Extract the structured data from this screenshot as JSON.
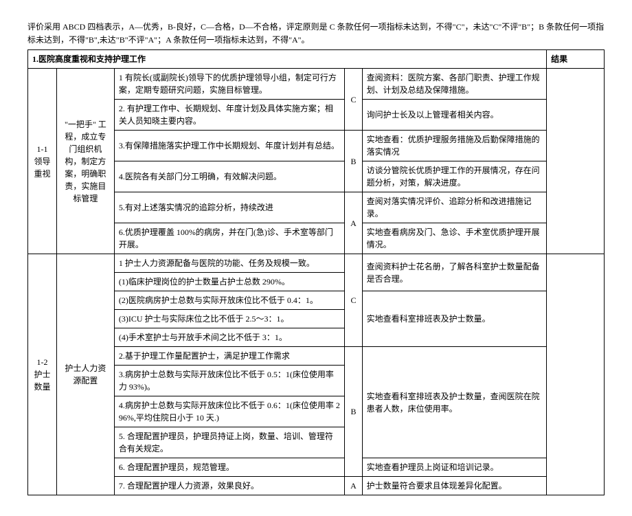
{
  "intro": "评价采用 ABCD 四档表示，A—优秀，B-良好，C—合格，D—不合格，评定原则是 C 条款任何一项指标未达到，不得\"C\"，未达\"C\"不评\"B\"；B 条款任何一项指标未达到，不得\"B\",未达\"B\"不评\"A\"；A 条款任何一项指标未达到，不得\"A\"。",
  "section_title": "1.医院高度重视和支持护理工作",
  "result_header": "结果",
  "section11": {
    "code": "1-1 领导重视",
    "project": "\"一把手\" 工程，成立专门组织机构，制定方案，明确职责，实施目标管理",
    "rows": [
      {
        "criteria": "1 有院长(或副院长)领导下的优质护理领导小组，制定可行方案，定期专题研究问题，实施目标管理。",
        "grade": "C",
        "method": "查阅资料：医院方案、各部门职责、护理工作规划、计划及总结及保障措施。"
      },
      {
        "criteria": "2. 有护理工作中、长期规划、年度计划及具体实施方案；相关人员知晓主要内容。",
        "method": "询问护士长及以上管理者相关内容。"
      },
      {
        "criteria": "3.有保障措施落实护理工作中长期规划、年度计划并有总结。",
        "grade": "B",
        "method": "实地查看：优质护理服务措施及后勤保障措施的落实情况"
      },
      {
        "criteria": "4.医院各有关部门分工明确，有效解决问题。",
        "method": "访谈分管院长优质护理工作的开展情况，存在问题分析，对策，解决进度。"
      },
      {
        "criteria": "5.有对上述落实情况的追踪分析，持续改进",
        "grade": "A",
        "method": "查阅对落实情况评价、追踪分析和改进措施记录。"
      },
      {
        "criteria": "6.优质护理覆盖 100%的病房，并在门(急)诊、手术室等部门开展。",
        "method": "实地查看病房及门、急诊、手术室优质护理开展情况。"
      }
    ]
  },
  "section12": {
    "code": "1-2 护士数量",
    "project": "护士人力资源配置",
    "rows": [
      {
        "criteria": "1 护士人力资源配备与医院的功能、任务及规模一致。",
        "grade": "C",
        "method1": "查阅资料护士花名册，了解各科室护士数量配备是否合理。",
        "method2": "实地查看科室排班表及护士数量。"
      },
      {
        "criteria": "(1)临床护理岗位的护士数量占护士总数 290%。"
      },
      {
        "criteria": "(2)医院病房护士总数与实际开放床位比不低于 0.4：1。"
      },
      {
        "criteria": "(3)ICU 护士与实际床位之比不低于 2.5～3：1。"
      },
      {
        "criteria": "(4)手术室护士与开放手术间之比不低于 3：1。"
      },
      {
        "criteria": "2.基于护理工作量配置护士，满足护理工作需求",
        "grade": "B",
        "method": "实地查看科室排班表及护士数量，查阅医院在院患者人数，床位使用率。"
      },
      {
        "criteria": "3.病房护士总数与实际开放床位比不低于 0.5：1(床位使用率力 93%)。"
      },
      {
        "criteria": "4.病房护士总数与实际开放床位比不低于 0.6：1(床位使用率 296%,平均住院日小于 10 天.)"
      },
      {
        "criteria": "5. 合理配置护理员，护理员持证上岗，数量、培训、管理符合有关规定。"
      },
      {
        "criteria": "6. 合理配置护理员，规范管理。",
        "method": "实地查看护理员上岗证和培训记录。"
      },
      {
        "criteria": "7. 合理配置护理人力资源，效果良好。",
        "grade": "A",
        "method": "护士数量符合要求且体现差异化配置。"
      }
    ]
  }
}
